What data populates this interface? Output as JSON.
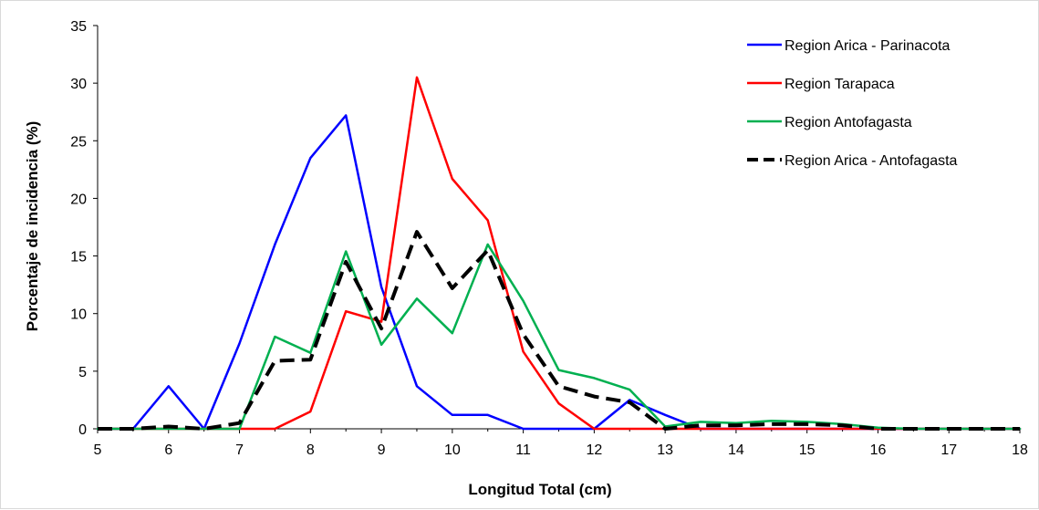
{
  "chart_data": {
    "type": "line",
    "title": "",
    "xlabel": "Longitud Total (cm)",
    "ylabel": "Porcentaje de incidencia (%)",
    "xlim": [
      5,
      18
    ],
    "ylim": [
      0,
      35
    ],
    "x_ticks": [
      "5",
      "6",
      "7",
      "8",
      "9",
      "10",
      "11",
      "12",
      "13",
      "14",
      "15",
      "16",
      "17",
      "18"
    ],
    "y_ticks": [
      "0",
      "5",
      "10",
      "15",
      "20",
      "25",
      "30",
      "35"
    ],
    "grid": false,
    "legend_position": "top-right",
    "x": [
      5,
      5.5,
      6,
      6.5,
      7,
      7.5,
      8,
      8.5,
      9,
      9.5,
      10,
      10.5,
      11,
      11.5,
      12,
      12.5,
      13,
      13.5,
      14,
      14.5,
      15,
      15.5,
      16,
      16.5,
      17,
      17.5,
      18
    ],
    "series": [
      {
        "name": "Region Arica - Parinacota",
        "color": "#0000ff",
        "dash": "solid",
        "values": [
          0,
          0,
          3.7,
          0,
          7.4,
          16,
          23.5,
          27.2,
          12.3,
          3.7,
          1.2,
          1.2,
          0,
          0,
          0,
          2.5,
          1.2,
          0,
          0,
          0,
          0,
          0,
          0,
          0,
          0,
          0,
          0
        ]
      },
      {
        "name": "Region Tarapaca",
        "color": "#ff0000",
        "dash": "solid",
        "values": [
          0,
          0,
          0,
          0,
          0,
          0,
          1.5,
          10.2,
          9.3,
          30.5,
          21.7,
          18.1,
          6.7,
          2.2,
          0,
          0,
          0,
          0,
          0,
          0,
          0,
          0,
          0,
          0,
          0,
          0,
          0
        ]
      },
      {
        "name": "Region Antofagasta",
        "color": "#00b050",
        "dash": "solid",
        "values": [
          0,
          0,
          0,
          0,
          0,
          8,
          6.6,
          15.4,
          7.3,
          11.3,
          8.3,
          16,
          11.1,
          5.1,
          4.4,
          3.4,
          0.2,
          0.6,
          0.5,
          0.7,
          0.6,
          0.4,
          0.1,
          0,
          0,
          0,
          0
        ]
      },
      {
        "name": "Region Arica - Antofagasta",
        "color": "#000000",
        "dash": "dashed",
        "values": [
          0,
          0,
          0.2,
          0,
          0.5,
          5.9,
          6,
          14.5,
          8.7,
          17.1,
          12.2,
          15.5,
          8.2,
          3.7,
          2.8,
          2.3,
          0,
          0.3,
          0.3,
          0.4,
          0.4,
          0.3,
          0,
          0,
          0,
          0,
          0
        ]
      }
    ]
  }
}
